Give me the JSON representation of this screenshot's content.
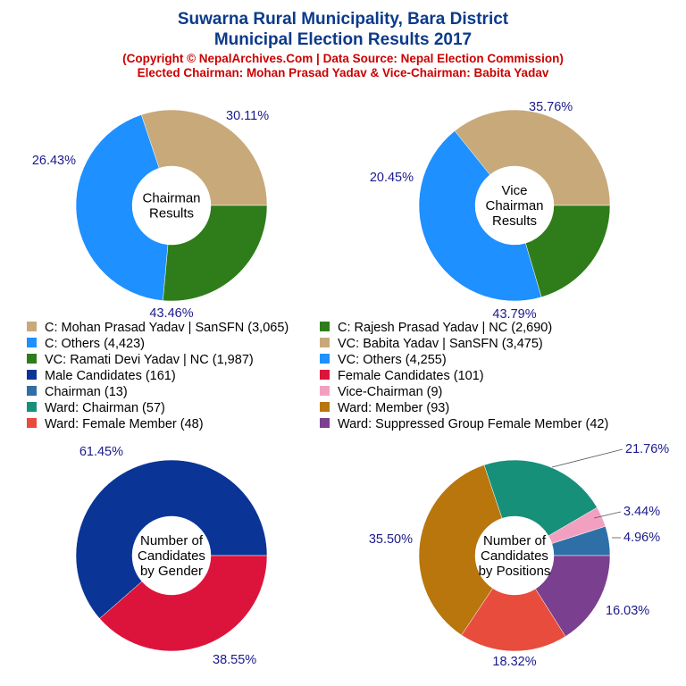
{
  "header": {
    "title_line1": "Suwarna Rural Municipality, Bara District",
    "title_line2": "Municipal Election Results 2017",
    "subtitle_line1": "(Copyright © NepalArchives.Com | Data Source: Nepal Election Commission)",
    "subtitle_line2": "Elected Chairman: Mohan Prasad Yadav & Vice-Chairman: Babita Yadav"
  },
  "colors": {
    "title": "#0b3a8a",
    "subtitle": "#cc0000",
    "percent_label": "#1a1a8c"
  },
  "legend": [
    {
      "label": "C: Mohan Prasad Yadav | SanSFN (3,065)",
      "color": "#c8a97a"
    },
    {
      "label": "C: Rajesh Prasad Yadav | NC (2,690)",
      "color": "#2e7d1a"
    },
    {
      "label": "C: Others (4,423)",
      "color": "#1e90ff"
    },
    {
      "label": "VC: Babita Yadav | SanSFN (3,475)",
      "color": "#c8a97a"
    },
    {
      "label": "VC: Ramati Devi Yadav | NC (1,987)",
      "color": "#2e7d1a"
    },
    {
      "label": "VC: Others (4,255)",
      "color": "#1e90ff"
    },
    {
      "label": "Male Candidates (161)",
      "color": "#0a3596"
    },
    {
      "label": "Female Candidates (101)",
      "color": "#dc143c"
    },
    {
      "label": "Chairman (13)",
      "color": "#2e6fa8"
    },
    {
      "label": "Vice-Chairman (9)",
      "color": "#f3a0c0"
    },
    {
      "label": "Ward: Chairman (57)",
      "color": "#17907a"
    },
    {
      "label": "Ward: Member (93)",
      "color": "#b8760c"
    },
    {
      "label": "Ward: Female Member (48)",
      "color": "#e74c3c"
    },
    {
      "label": "Ward: Suppressed Group Female Member (42)",
      "color": "#7b3f8f"
    }
  ],
  "chart_data": [
    {
      "type": "pie",
      "center_label": [
        "Chairman",
        "Results"
      ],
      "labels": [
        "C: Mohan Prasad Yadav | SanSFN",
        "C: Others",
        "C: Rajesh Prasad Yadav | NC"
      ],
      "values": [
        3065,
        4423,
        2690
      ],
      "percent_labels": [
        "30.11%",
        "43.46%",
        "26.43%"
      ],
      "colors": [
        "#c8a97a",
        "#1e90ff",
        "#2e7d1a"
      ]
    },
    {
      "type": "pie",
      "center_label": [
        "Vice",
        "Chairman",
        "Results"
      ],
      "labels": [
        "VC: Babita Yadav | SanSFN",
        "VC: Others",
        "VC: Ramati Devi Yadav | NC"
      ],
      "values": [
        3475,
        4255,
        1987
      ],
      "percent_labels": [
        "35.76%",
        "43.79%",
        "20.45%"
      ],
      "colors": [
        "#c8a97a",
        "#1e90ff",
        "#2e7d1a"
      ]
    },
    {
      "type": "pie",
      "center_label": [
        "Number of",
        "Candidates",
        "by Gender"
      ],
      "labels": [
        "Male Candidates",
        "Female Candidates"
      ],
      "values": [
        161,
        101
      ],
      "percent_labels": [
        "61.45%",
        "38.55%"
      ],
      "colors": [
        "#0a3596",
        "#dc143c"
      ]
    },
    {
      "type": "pie",
      "center_label": [
        "Number of",
        "Candidates",
        "by Positions"
      ],
      "labels": [
        "Chairman",
        "Vice-Chairman",
        "Ward: Chairman",
        "Ward: Member",
        "Ward: Female Member",
        "Ward: Suppressed Group Female Member"
      ],
      "values": [
        13,
        9,
        57,
        93,
        48,
        42
      ],
      "percent_labels": [
        "4.96%",
        "3.44%",
        "21.76%",
        "35.50%",
        "18.32%",
        "16.03%"
      ],
      "colors": [
        "#2e6fa8",
        "#f3a0c0",
        "#17907a",
        "#b8760c",
        "#e74c3c",
        "#7b3f8f"
      ]
    }
  ]
}
